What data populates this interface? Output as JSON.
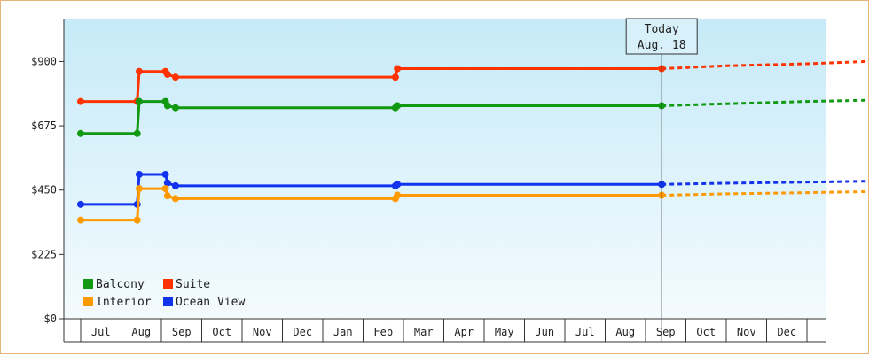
{
  "chart_data": {
    "type": "line",
    "y_ticks": [
      {
        "value": 0,
        "label": "$0"
      },
      {
        "value": 225,
        "label": "$225"
      },
      {
        "value": 450,
        "label": "$450"
      },
      {
        "value": 675,
        "label": "$675"
      },
      {
        "value": 900,
        "label": "$900"
      }
    ],
    "ylim": [
      0,
      1050
    ],
    "x_months": [
      "Jul",
      "Aug",
      "Sep",
      "Oct",
      "Nov",
      "Dec",
      "Jan",
      "Feb",
      "Mar",
      "Apr",
      "May",
      "Jun",
      "Jul",
      "Aug",
      "Sep",
      "Oct",
      "Nov",
      "Dec"
    ],
    "today_label": [
      "Today",
      "Aug. 18"
    ],
    "today_x": 14.4,
    "series": [
      {
        "name": "Suite",
        "color": "#ff3300",
        "points": [
          [
            0,
            760
          ],
          [
            1.4,
            760
          ],
          [
            1.45,
            865
          ],
          [
            2.1,
            865
          ],
          [
            2.15,
            855
          ],
          [
            2.35,
            845
          ],
          [
            7.8,
            845
          ],
          [
            7.85,
            875
          ],
          [
            14.4,
            875
          ]
        ],
        "markers": [
          [
            0,
            760
          ],
          [
            1.4,
            760
          ],
          [
            1.45,
            865
          ],
          [
            2.1,
            865
          ],
          [
            2.15,
            855
          ],
          [
            2.35,
            845
          ],
          [
            7.8,
            845
          ],
          [
            7.85,
            875
          ],
          [
            14.4,
            875
          ]
        ],
        "forecast": [
          [
            14.4,
            875
          ],
          [
            16,
            885
          ],
          [
            18,
            892
          ],
          [
            20,
            903
          ],
          [
            21.6,
            908
          ]
        ]
      },
      {
        "name": "Balcony",
        "color": "#119911",
        "points": [
          [
            0,
            648
          ],
          [
            1.4,
            648
          ],
          [
            1.45,
            760
          ],
          [
            2.1,
            760
          ],
          [
            2.15,
            745
          ],
          [
            2.35,
            738
          ],
          [
            7.8,
            738
          ],
          [
            7.85,
            745
          ],
          [
            14.4,
            745
          ]
        ],
        "markers": [
          [
            0,
            648
          ],
          [
            1.4,
            648
          ],
          [
            1.45,
            760
          ],
          [
            2.1,
            760
          ],
          [
            2.15,
            745
          ],
          [
            2.35,
            738
          ],
          [
            7.8,
            738
          ],
          [
            7.85,
            745
          ],
          [
            14.4,
            745
          ]
        ],
        "forecast": [
          [
            14.4,
            745
          ],
          [
            16,
            752
          ],
          [
            18,
            760
          ],
          [
            20,
            766
          ],
          [
            21.6,
            770
          ]
        ]
      },
      {
        "name": "Ocean View",
        "color": "#1133ee",
        "points": [
          [
            0,
            400
          ],
          [
            1.4,
            400
          ],
          [
            1.45,
            505
          ],
          [
            2.1,
            505
          ],
          [
            2.15,
            475
          ],
          [
            2.35,
            465
          ],
          [
            7.8,
            465
          ],
          [
            7.85,
            470
          ],
          [
            14.4,
            470
          ]
        ],
        "markers": [
          [
            0,
            400
          ],
          [
            1.4,
            400
          ],
          [
            1.45,
            505
          ],
          [
            2.1,
            505
          ],
          [
            2.15,
            475
          ],
          [
            2.35,
            465
          ],
          [
            7.8,
            465
          ],
          [
            7.85,
            470
          ],
          [
            14.4,
            470
          ]
        ],
        "forecast": [
          [
            14.4,
            470
          ],
          [
            16,
            474
          ],
          [
            18,
            478
          ],
          [
            20,
            482
          ],
          [
            21.6,
            486
          ]
        ]
      },
      {
        "name": "Interior",
        "color": "#ff9900",
        "points": [
          [
            0,
            345
          ],
          [
            1.4,
            345
          ],
          [
            1.45,
            455
          ],
          [
            2.1,
            455
          ],
          [
            2.15,
            430
          ],
          [
            2.35,
            420
          ],
          [
            7.8,
            420
          ],
          [
            7.85,
            432
          ],
          [
            14.4,
            432
          ]
        ],
        "markers": [
          [
            0,
            345
          ],
          [
            1.4,
            345
          ],
          [
            1.45,
            455
          ],
          [
            2.1,
            455
          ],
          [
            2.15,
            430
          ],
          [
            2.35,
            420
          ],
          [
            7.8,
            420
          ],
          [
            7.85,
            432
          ],
          [
            14.4,
            432
          ]
        ],
        "forecast": [
          [
            14.4,
            432
          ],
          [
            16,
            437
          ],
          [
            18,
            441
          ],
          [
            20,
            446
          ],
          [
            21.6,
            448
          ]
        ]
      }
    ],
    "legend": [
      {
        "name": "Balcony",
        "color": "#119911"
      },
      {
        "name": "Suite",
        "color": "#ff3300"
      },
      {
        "name": "Interior",
        "color": "#ff9900"
      },
      {
        "name": "Ocean View",
        "color": "#1133ee"
      }
    ]
  }
}
